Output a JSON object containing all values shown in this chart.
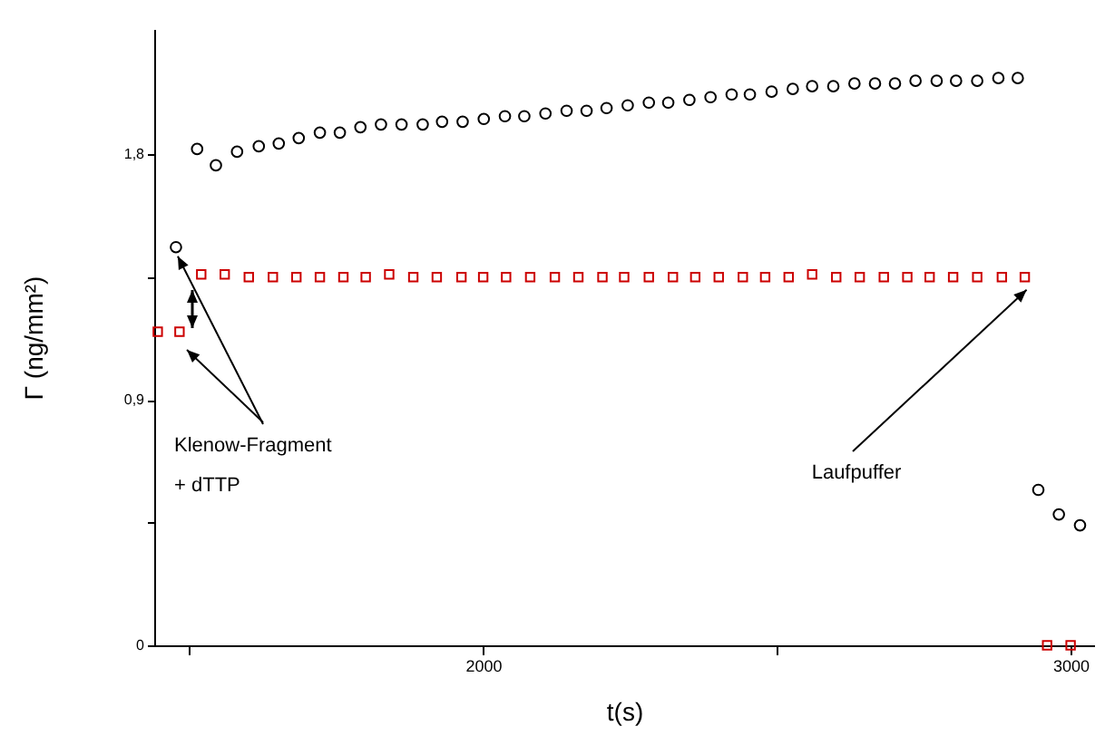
{
  "chart_data": {
    "type": "scatter",
    "xlabel": "t(s)",
    "ylabel": "Γ (ng/mm²)",
    "xlim": [
      1440,
      3040
    ],
    "xticks": [
      {
        "value": 1500,
        "label": null
      },
      2000,
      {
        "value": 2500,
        "label": null
      },
      3000
    ],
    "ylim": [
      0,
      2.26
    ],
    "yticks": [
      0,
      {
        "value": 0.45,
        "label": null
      },
      {
        "value": 0.9,
        "label": "0,9"
      },
      {
        "value": 1.35,
        "label": null
      },
      {
        "value": 1.8,
        "label": "1,8"
      }
    ],
    "grid": false,
    "series": [
      {
        "color": "#000000",
        "marker": "circle",
        "x": [
          1477,
          1513,
          1545,
          1581,
          1618,
          1652,
          1686,
          1722,
          1756,
          1791,
          1826,
          1861,
          1897,
          1930,
          1965,
          2001,
          2037,
          2070,
          2106,
          2142,
          2176,
          2210,
          2246,
          2282,
          2315,
          2351,
          2387,
          2423,
          2454,
          2491,
          2527,
          2560,
          2596,
          2632,
          2667,
          2701,
          2736,
          2772,
          2805,
          2841,
          2877,
          2910,
          2945,
          2980,
          3016
        ],
        "values": [
          1.46,
          1.82,
          1.76,
          1.81,
          1.83,
          1.84,
          1.86,
          1.88,
          1.88,
          1.9,
          1.91,
          1.91,
          1.91,
          1.92,
          1.92,
          1.93,
          1.94,
          1.94,
          1.95,
          1.96,
          1.96,
          1.97,
          1.98,
          1.99,
          1.99,
          2.0,
          2.01,
          2.02,
          2.02,
          2.03,
          2.04,
          2.05,
          2.05,
          2.06,
          2.06,
          2.06,
          2.07,
          2.07,
          2.07,
          2.07,
          2.08,
          2.08,
          0.57,
          0.48,
          0.44
        ]
      },
      {
        "color": "#cc0000",
        "marker": "square",
        "x": [
          1446,
          1483,
          1520,
          1560,
          1601,
          1642,
          1682,
          1722,
          1762,
          1800,
          1840,
          1881,
          1921,
          1963,
          2000,
          2039,
          2080,
          2122,
          2162,
          2203,
          2240,
          2282,
          2323,
          2361,
          2401,
          2442,
          2480,
          2520,
          2560,
          2601,
          2641,
          2682,
          2722,
          2760,
          2800,
          2841,
          2883,
          2922,
          2960,
          3000
        ],
        "values": [
          1.15,
          1.15,
          1.36,
          1.36,
          1.35,
          1.35,
          1.35,
          1.35,
          1.35,
          1.35,
          1.36,
          1.35,
          1.35,
          1.35,
          1.35,
          1.35,
          1.35,
          1.35,
          1.35,
          1.35,
          1.35,
          1.35,
          1.35,
          1.35,
          1.35,
          1.35,
          1.35,
          1.35,
          1.36,
          1.35,
          1.35,
          1.35,
          1.35,
          1.35,
          1.35,
          1.35,
          1.35,
          1.35,
          0,
          0
        ]
      }
    ],
    "annotations": [
      {
        "text": "Klenow-Fragment\n+ dTTP",
        "x": 1477,
        "y": 1.46
      },
      {
        "text": "Laufpuffer",
        "x": 2922,
        "y": 1.35
      }
    ]
  }
}
